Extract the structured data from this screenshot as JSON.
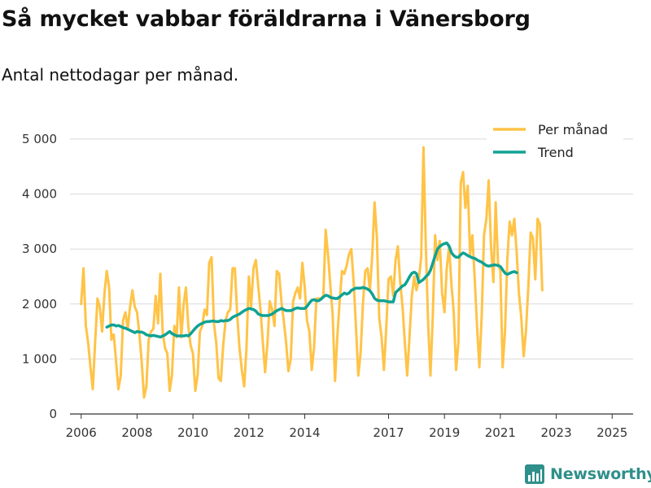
{
  "title": "Så mycket vabbar föräldrarna i Vänersborg",
  "subtitle": "Antal nettodagar per månad.",
  "brand": "Newsworthy",
  "colors": {
    "per_month": "#ffc347",
    "trend": "#10a293",
    "grid": "#d9d9d9",
    "axis": "#333333",
    "brand": "#2f8f8a"
  },
  "chart_data": {
    "type": "line",
    "title": "Så mycket vabbar föräldrarna i Vänersborg",
    "ylabel": "Antal nettodagar per månad",
    "xlabel": "",
    "ylim": [
      0,
      5000
    ],
    "xlim": [
      2005.6,
      2025.75
    ],
    "grid": true,
    "legend": "top-right",
    "x_ticks": [
      2006,
      2008,
      2010,
      2012,
      2014,
      2017,
      2019,
      2021,
      2023,
      2025
    ],
    "x_tick_labels": [
      "2006",
      "2008",
      "2010",
      "2012",
      "2014",
      "2017",
      "2019",
      "2021",
      "2023",
      "2025"
    ],
    "y_ticks": [
      0,
      1000,
      2000,
      3000,
      4000,
      5000
    ],
    "y_tick_labels": [
      "0",
      "1 000",
      "2 000",
      "3 000",
      "4 000",
      "5 000"
    ],
    "series": [
      {
        "name": "Per månad",
        "x_start": 2006.0,
        "step": 0.08333,
        "values": [
          2000,
          2650,
          1600,
          1300,
          850,
          450,
          1300,
          2100,
          1950,
          1500,
          2200,
          2600,
          2300,
          1350,
          1450,
          950,
          450,
          700,
          1700,
          1850,
          1550,
          1950,
          2250,
          1950,
          1850,
          1450,
          950,
          300,
          500,
          1350,
          1500,
          1550,
          2150,
          1650,
          2550,
          1500,
          1200,
          1100,
          420,
          700,
          1600,
          1400,
          2300,
          1400,
          2000,
          2300,
          1600,
          1250,
          1100,
          420,
          700,
          1500,
          1600,
          1900,
          1800,
          2750,
          2850,
          1650,
          1300,
          650,
          600,
          1250,
          1700,
          1850,
          1900,
          2650,
          2650,
          1800,
          1200,
          800,
          500,
          1200,
          2500,
          1950,
          2650,
          2800,
          2350,
          1900,
          1300,
          760,
          1300,
          2050,
          1900,
          1600,
          2600,
          2550,
          2050,
          1700,
          1300,
          780,
          1000,
          2050,
          2200,
          2300,
          2100,
          2750,
          2300,
          1700,
          1500,
          800,
          1200,
          2100,
          2100,
          2100,
          2150,
          3350,
          2900,
          2350,
          1800,
          600,
          1400,
          2050,
          2600,
          2550,
          2700,
          2900,
          3000,
          2400,
          1600,
          700,
          1100,
          2000,
          2600,
          2650,
          2250,
          2900,
          3850,
          3200,
          1750,
          1400,
          800,
          1550,
          2450,
          2500,
          2150,
          2800,
          3050,
          2400,
          1950,
          1300,
          700,
          1400,
          2150,
          2500,
          2250,
          2450,
          2850,
          4850,
          3050,
          1650,
          700,
          1800,
          3250,
          2800,
          3150,
          2200,
          1850,
          2650,
          3050,
          2350,
          1850,
          800,
          1300,
          4200,
          4400,
          3750,
          4150,
          2900,
          3250,
          2450,
          1600,
          850,
          1800,
          3250,
          3550,
          4250,
          3050,
          2400,
          3850,
          2750,
          2600,
          850,
          1500,
          2800,
          3500,
          3250,
          3550,
          2950,
          2200,
          1750,
          1050,
          1500,
          2300,
          3300,
          3200,
          2450,
          3550,
          3450,
          2250
        ]
      },
      {
        "name": "Trend",
        "x_start": 2006.92,
        "step": 0.08333,
        "values": [
          1580,
          1600,
          1620,
          1620,
          1600,
          1610,
          1590,
          1570,
          1560,
          1540,
          1520,
          1500,
          1480,
          1500,
          1490,
          1490,
          1470,
          1440,
          1430,
          1420,
          1430,
          1420,
          1410,
          1400,
          1420,
          1440,
          1470,
          1500,
          1460,
          1440,
          1420,
          1420,
          1420,
          1420,
          1430,
          1420,
          1460,
          1510,
          1560,
          1600,
          1630,
          1650,
          1670,
          1680,
          1680,
          1690,
          1690,
          1680,
          1680,
          1700,
          1690,
          1700,
          1700,
          1720,
          1760,
          1780,
          1800,
          1820,
          1850,
          1880,
          1900,
          1920,
          1910,
          1900,
          1870,
          1820,
          1800,
          1790,
          1790,
          1790,
          1800,
          1820,
          1850,
          1880,
          1900,
          1920,
          1900,
          1880,
          1880,
          1880,
          1900,
          1920,
          1930,
          1920,
          1920,
          1920,
          1960,
          2020,
          2070,
          2080,
          2060,
          2060,
          2090,
          2130,
          2160,
          2150,
          2120,
          2110,
          2100,
          2100,
          2130,
          2170,
          2200,
          2180,
          2200,
          2250,
          2270,
          2290,
          2290,
          2290,
          2300,
          2290,
          2270,
          2240,
          2180,
          2100,
          2070,
          2060,
          2060,
          2060,
          2050,
          2040,
          2040,
          2040,
          2210,
          2250,
          2290,
          2330,
          2350,
          2420,
          2500,
          2560,
          2580,
          2550,
          2390,
          2420,
          2450,
          2500,
          2540,
          2620,
          2750,
          2880,
          3000,
          3050,
          3080,
          3100,
          3110,
          3050,
          2930,
          2880,
          2850,
          2850,
          2900,
          2930,
          2910,
          2880,
          2860,
          2840,
          2830,
          2800,
          2780,
          2760,
          2730,
          2700,
          2690,
          2700,
          2710,
          2710,
          2700,
          2680,
          2620,
          2560,
          2540,
          2560,
          2580,
          2590,
          2570
        ]
      }
    ]
  }
}
